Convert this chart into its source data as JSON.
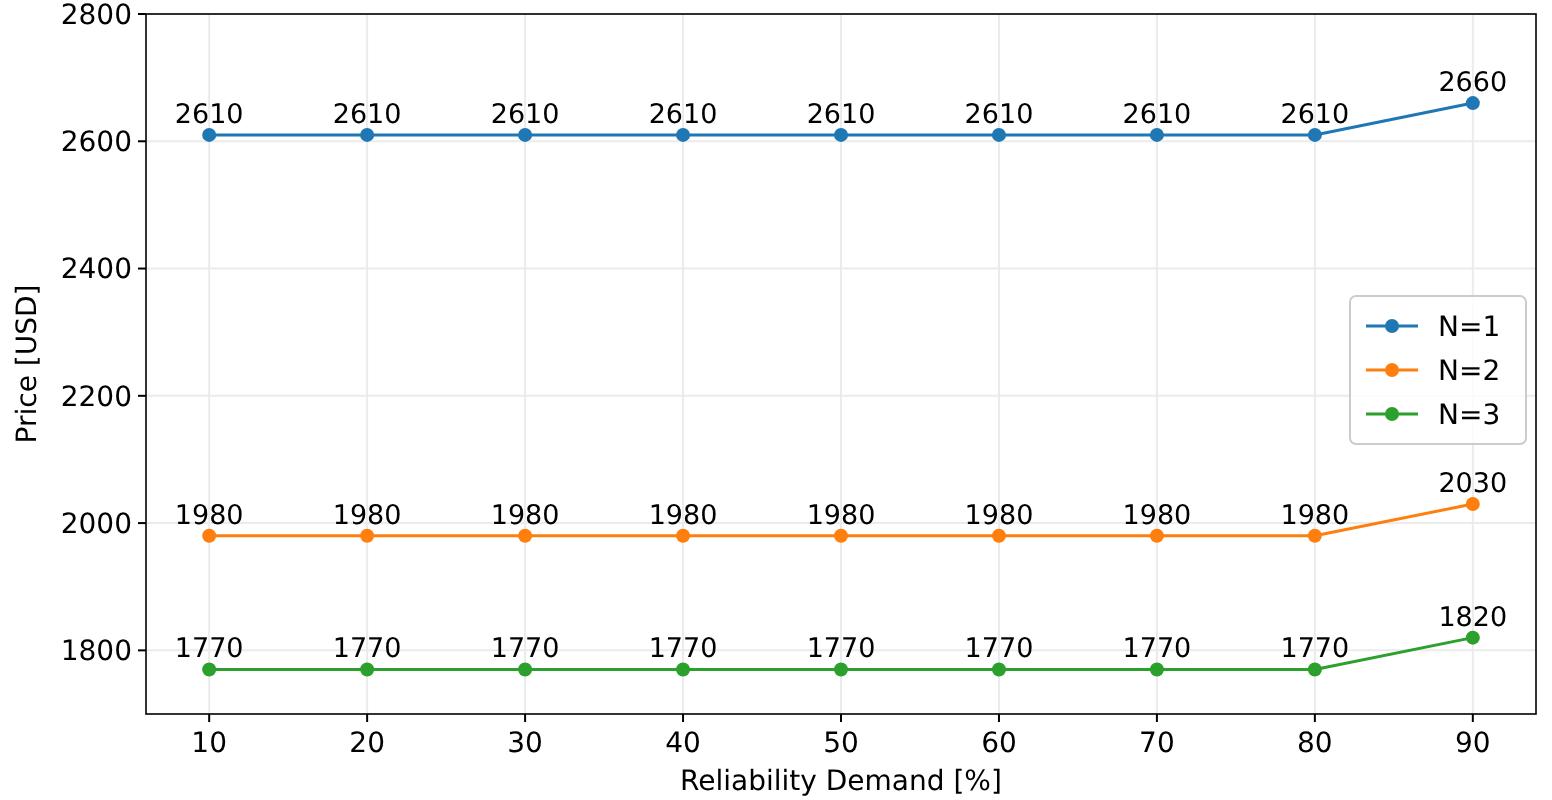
{
  "chart_data": {
    "type": "line",
    "xlabel": "Reliability Demand [%]",
    "ylabel": "Price [USD]",
    "x": [
      10,
      20,
      30,
      40,
      50,
      60,
      70,
      80,
      90
    ],
    "series": [
      {
        "name": "N=1",
        "color": "#1f77b4",
        "values": [
          2610,
          2610,
          2610,
          2610,
          2610,
          2610,
          2610,
          2610,
          2660
        ]
      },
      {
        "name": "N=2",
        "color": "#ff7f0e",
        "values": [
          1980,
          1980,
          1980,
          1980,
          1980,
          1980,
          1980,
          1980,
          2030
        ]
      },
      {
        "name": "N=3",
        "color": "#2ca02c",
        "values": [
          1770,
          1770,
          1770,
          1770,
          1770,
          1770,
          1770,
          1770,
          1820
        ]
      }
    ],
    "xlim": [
      6,
      94
    ],
    "ylim": [
      1700,
      2800
    ],
    "xticks": [
      10,
      20,
      30,
      40,
      50,
      60,
      70,
      80,
      90
    ],
    "yticks": [
      1800,
      2000,
      2200,
      2400,
      2600,
      2800
    ],
    "grid": true,
    "legend": "right",
    "marker": "circle",
    "line_style": "solid",
    "data_labels": true
  }
}
